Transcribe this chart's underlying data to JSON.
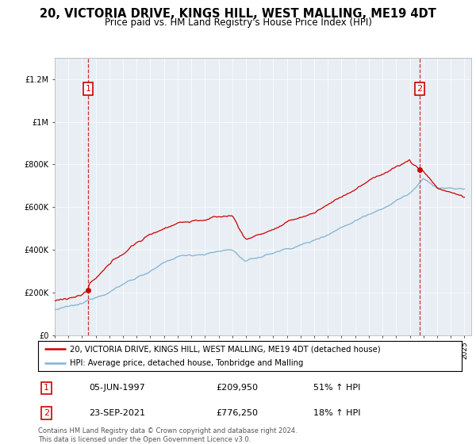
{
  "title": "20, VICTORIA DRIVE, KINGS HILL, WEST MALLING, ME19 4DT",
  "subtitle": "Price paid vs. HM Land Registry's House Price Index (HPI)",
  "legend_line1": "20, VICTORIA DRIVE, KINGS HILL, WEST MALLING, ME19 4DT (detached house)",
  "legend_line2": "HPI: Average price, detached house, Tonbridge and Malling",
  "annotation1_date": "05-JUN-1997",
  "annotation1_price": "£209,950",
  "annotation1_hpi": "51% ↑ HPI",
  "annotation2_date": "23-SEP-2021",
  "annotation2_price": "£776,250",
  "annotation2_hpi": "18% ↑ HPI",
  "footer": "Contains HM Land Registry data © Crown copyright and database right 2024.\nThis data is licensed under the Open Government Licence v3.0.",
  "property_color": "#cc0000",
  "hpi_color": "#7fb3d3",
  "bg_color": "#e8eef4",
  "ylim": [
    0,
    1300000
  ],
  "yticks": [
    0,
    200000,
    400000,
    600000,
    800000,
    1000000,
    1200000
  ],
  "sale1_x": 1997.44,
  "sale1_y": 209950,
  "sale2_x": 2021.73,
  "sale2_y": 776250,
  "xmin": 1995,
  "xmax": 2025.5
}
